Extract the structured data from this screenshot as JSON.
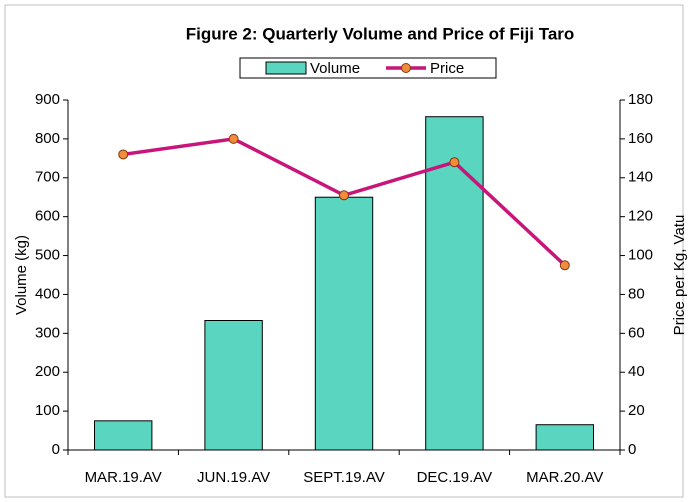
{
  "chart_data": {
    "type": "bar_line",
    "title": "Figure 2: Quarterly Volume and Price of Fiji Taro",
    "categories": [
      "MAR.19.AV",
      "JUN.19.AV",
      "SEPT.19.AV",
      "DEC.19.AV",
      "MAR.20.AV"
    ],
    "series": [
      {
        "name": "Volume",
        "color": "#5ad5c0",
        "values": [
          75,
          333,
          650,
          857,
          65
        ]
      },
      {
        "name": "Price",
        "color": "#c8157a",
        "marker_color": "#f08c3c",
        "axis": "y2",
        "values": [
          152,
          160,
          131,
          148,
          95
        ]
      }
    ],
    "ylabel": "Volume (kg)",
    "y2label": "Price per Kg, Vatu",
    "ylim": [
      0,
      900
    ],
    "yticks": [
      0,
      100,
      200,
      300,
      400,
      500,
      600,
      700,
      800,
      900
    ],
    "y2lim": [
      0,
      180
    ],
    "y2ticks": [
      0,
      20,
      40,
      60,
      80,
      100,
      120,
      140,
      160,
      180
    ],
    "legend": "top"
  }
}
